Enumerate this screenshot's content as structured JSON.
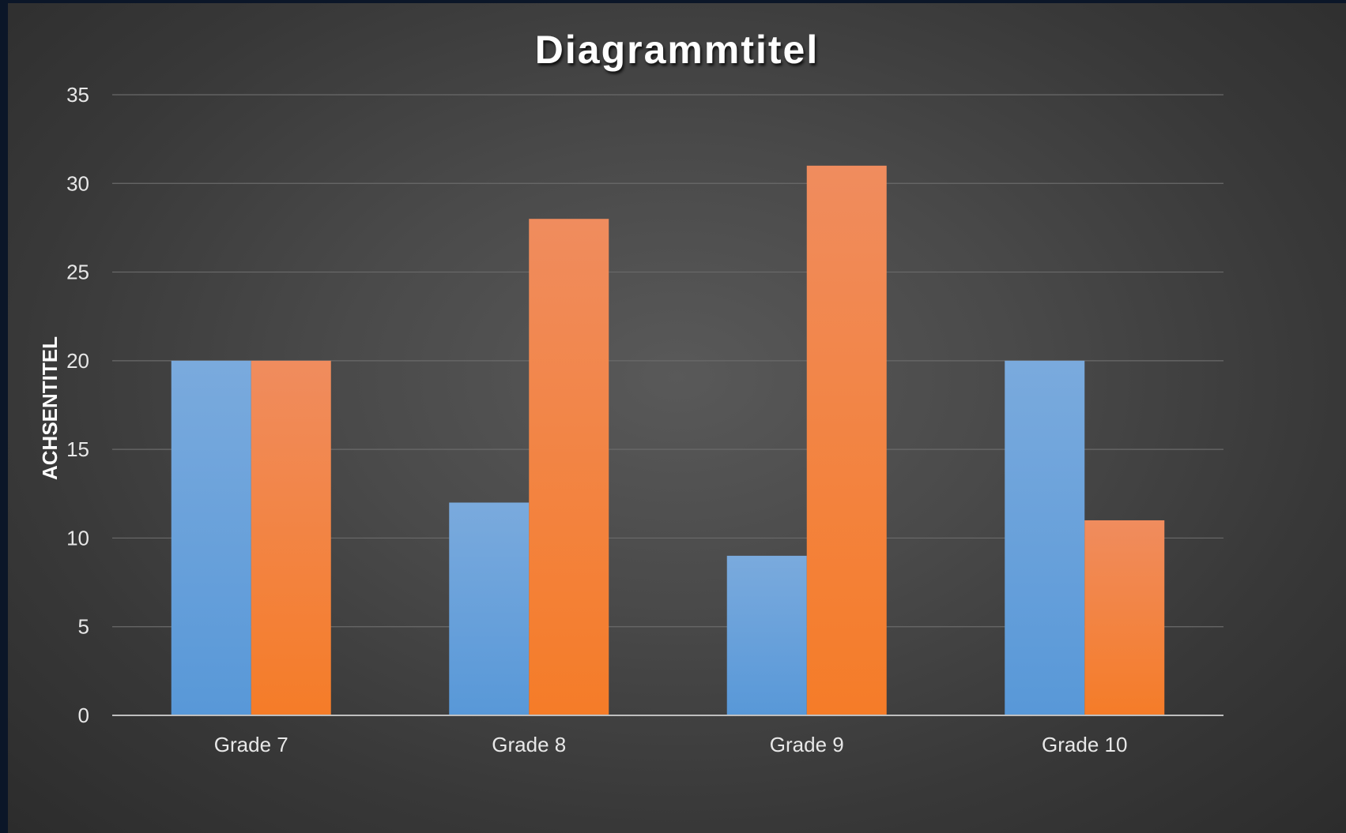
{
  "chart_data": {
    "type": "bar",
    "title": "Diagrammtitel",
    "xlabel": "",
    "ylabel": "ACHSENTITEL",
    "categories": [
      "Grade 7",
      "Grade 8",
      "Grade 9",
      "Grade 10"
    ],
    "series": [
      {
        "values": [
          20,
          12,
          9,
          20
        ],
        "color": "#5b9bd5"
      },
      {
        "values": [
          20,
          28,
          31,
          11
        ],
        "color": "#ed7d31"
      }
    ],
    "ylim": [
      0,
      35
    ],
    "yticks": [
      0,
      5,
      10,
      15,
      20,
      25,
      30,
      35
    ],
    "grid": true,
    "legend": "none"
  }
}
